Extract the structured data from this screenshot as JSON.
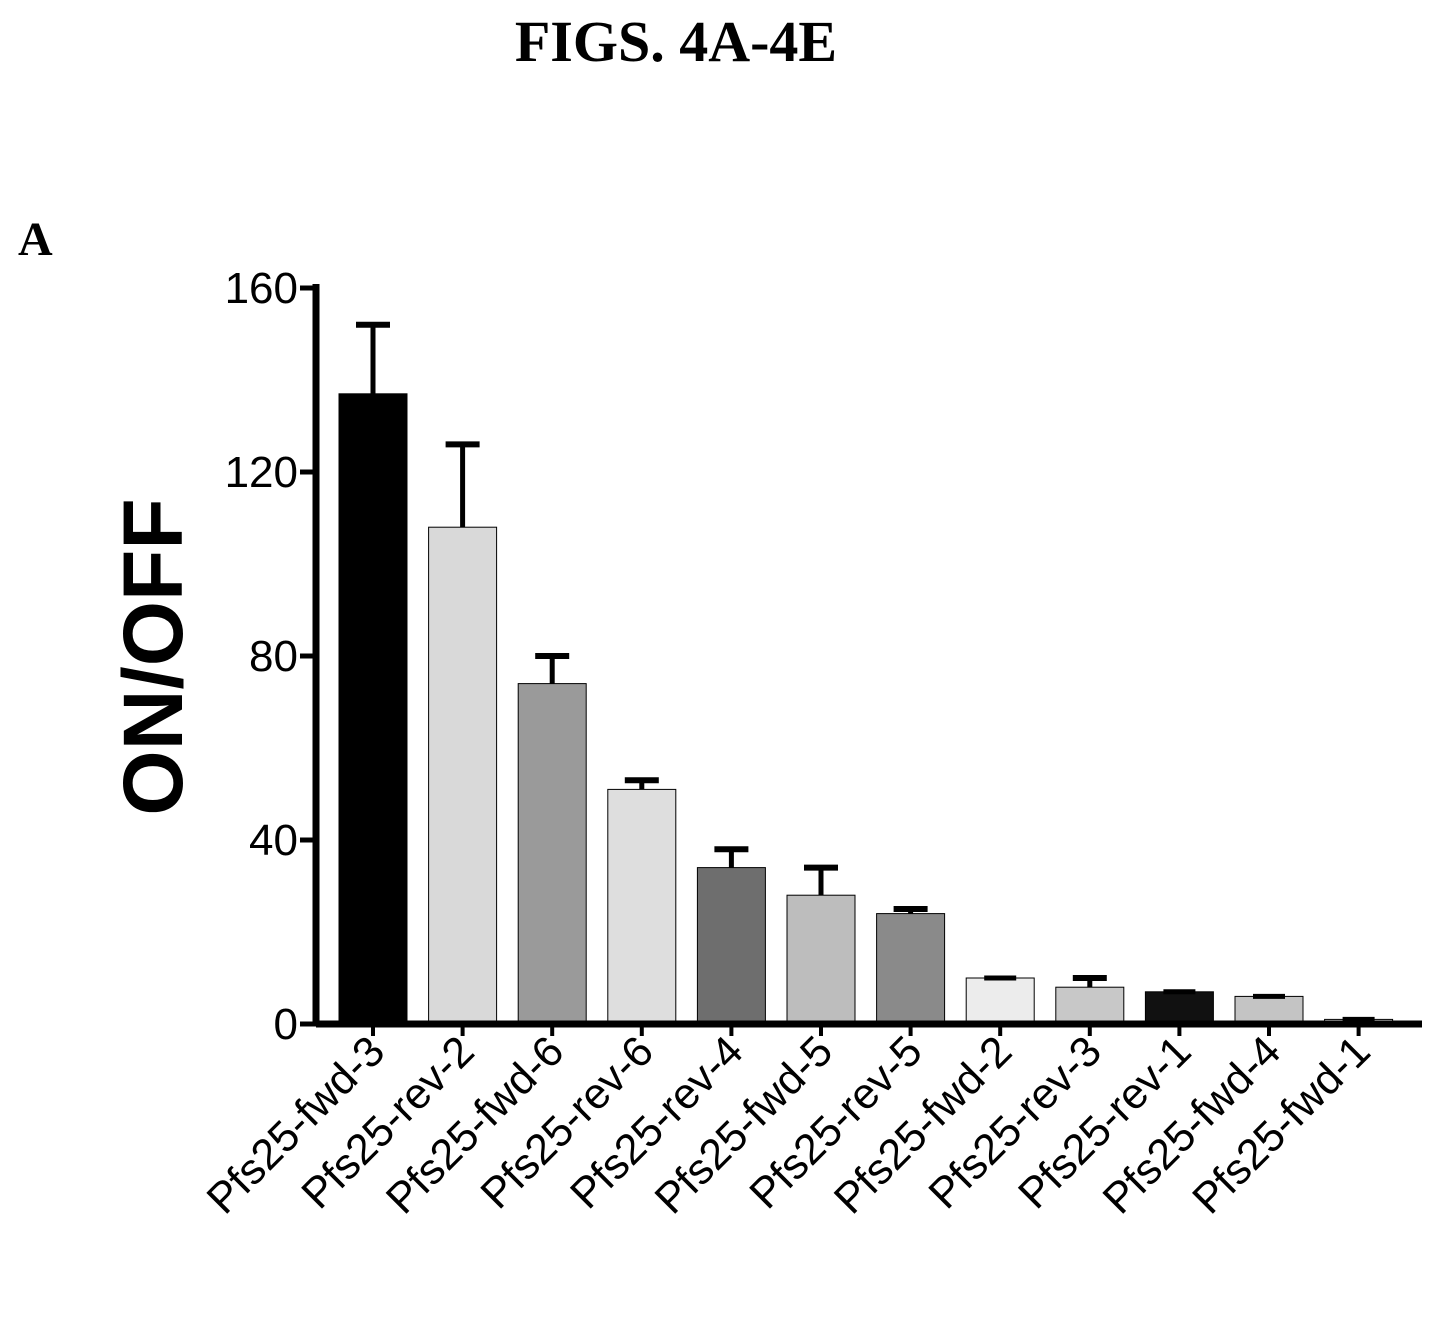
{
  "figure": {
    "title": "FIGS. 4A-4E",
    "panel_label": "A"
  },
  "colors": {
    "axis": "#000000",
    "error_bar": "#000000"
  },
  "chart_data": {
    "type": "bar",
    "title": "",
    "xlabel": "",
    "ylabel": "ON/OFF",
    "ylim": [
      0,
      160
    ],
    "yticks": [
      0,
      40,
      80,
      120,
      160
    ],
    "grid": false,
    "categories": [
      "Pfs25-fwd-3",
      "Pfs25-rev-2",
      "Pfs25-fwd-6",
      "Pfs25-rev-6",
      "Pfs25-rev-4",
      "Pfs25-fwd-5",
      "Pfs25-rev-5",
      "Pfs25-fwd-2",
      "Pfs25-rev-3",
      "Pfs25-rev-1",
      "Pfs25-fwd-4",
      "Pfs25-fwd-1"
    ],
    "values": [
      137,
      108,
      74,
      51,
      34,
      28,
      24,
      10,
      8,
      7,
      6,
      1
    ],
    "error_upper": [
      152,
      126,
      80,
      53,
      38,
      34,
      25,
      10,
      10,
      7,
      6,
      1
    ],
    "bar_fills": [
      "#000000",
      "#d9d9d9",
      "#9a9a9a",
      "#dedede",
      "#6e6e6e",
      "#bdbdbd",
      "#8a8a8a",
      "#ececec",
      "#c8c8c8",
      "#111111",
      "#c4c4c4",
      "#e4e4e4"
    ]
  }
}
